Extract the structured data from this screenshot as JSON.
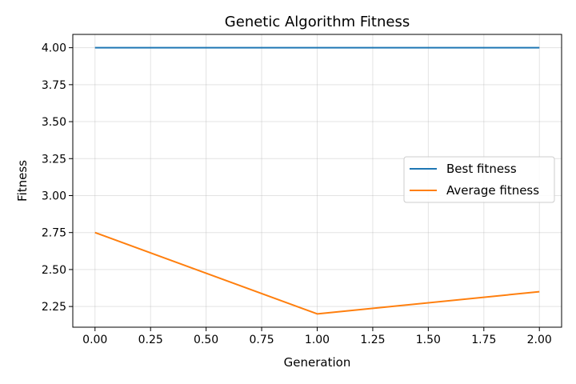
{
  "chart_data": {
    "type": "line",
    "title": "Genetic Algorithm Fitness",
    "xlabel": "Generation",
    "ylabel": "Fitness",
    "x": [
      0,
      1,
      2
    ],
    "xlim": [
      -0.1,
      2.1
    ],
    "ylim": [
      2.11,
      4.09
    ],
    "xticks": [
      0.0,
      0.25,
      0.5,
      0.75,
      1.0,
      1.25,
      1.5,
      1.75,
      2.0
    ],
    "xtick_labels": [
      "0.00",
      "0.25",
      "0.50",
      "0.75",
      "1.00",
      "1.25",
      "1.50",
      "1.75",
      "2.00"
    ],
    "yticks": [
      2.25,
      2.5,
      2.75,
      3.0,
      3.25,
      3.5,
      3.75,
      4.0
    ],
    "ytick_labels": [
      "2.25",
      "2.50",
      "2.75",
      "3.00",
      "3.25",
      "3.50",
      "3.75",
      "4.00"
    ],
    "grid": true,
    "legend_position": "center-right",
    "series": [
      {
        "name": "Best fitness",
        "values": [
          4.0,
          4.0,
          4.0
        ],
        "color": "#1f77b4"
      },
      {
        "name": "Average fitness",
        "values": [
          2.75,
          2.2,
          2.35
        ],
        "color": "#ff7f0e"
      }
    ]
  }
}
